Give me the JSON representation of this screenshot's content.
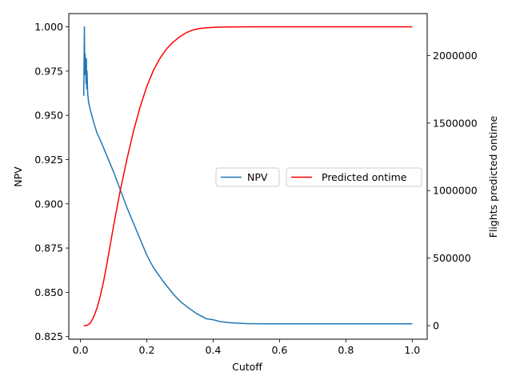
{
  "chart_data": {
    "type": "line",
    "xlabel": "Cutoff",
    "ylabel_left": "NPV",
    "ylabel_right": "Flights predicted ontime",
    "xlim": [
      -0.035,
      1.045
    ],
    "ylim_left": [
      0.8235,
      1.0075
    ],
    "ylim_right": [
      -100000,
      2310000
    ],
    "x_ticks": [
      "0.0",
      "0.2",
      "0.4",
      "0.6",
      "0.8",
      "1.0"
    ],
    "x_tick_values": [
      0.0,
      0.2,
      0.4,
      0.6,
      0.8,
      1.0
    ],
    "y_left_ticks": [
      "0.825",
      "0.850",
      "0.875",
      "0.900",
      "0.925",
      "0.950",
      "0.975",
      "1.000"
    ],
    "y_left_tick_values": [
      0.825,
      0.85,
      0.875,
      0.9,
      0.925,
      0.95,
      0.975,
      1.0
    ],
    "y_right_ticks": [
      "0",
      "500000",
      "1000000",
      "1500000",
      "2000000"
    ],
    "y_right_tick_values": [
      0,
      500000,
      1000000,
      1500000,
      2000000
    ],
    "legend": {
      "placement": "center-right",
      "entries": [
        "NPV",
        "Predicted ontime"
      ]
    },
    "series": [
      {
        "name": "NPV",
        "axis": "left",
        "color": "#1f77b4",
        "x": [
          0.01,
          0.012,
          0.013,
          0.014,
          0.015,
          0.016,
          0.017,
          0.018,
          0.019,
          0.02,
          0.022,
          0.025,
          0.03,
          0.04,
          0.05,
          0.06,
          0.08,
          0.1,
          0.12,
          0.14,
          0.16,
          0.18,
          0.2,
          0.22,
          0.25,
          0.28,
          0.3,
          0.32,
          0.35,
          0.38,
          0.4,
          0.42,
          0.45,
          0.5,
          0.55,
          0.6,
          0.7,
          0.8,
          0.9,
          1.0
        ],
        "y": [
          0.961,
          1.0,
          0.973,
          0.985,
          0.976,
          0.98,
          0.968,
          0.982,
          0.965,
          0.975,
          0.962,
          0.957,
          0.953,
          0.946,
          0.94,
          0.936,
          0.927,
          0.918,
          0.908,
          0.898,
          0.889,
          0.88,
          0.871,
          0.864,
          0.856,
          0.849,
          0.845,
          0.842,
          0.838,
          0.835,
          0.8345,
          0.8335,
          0.8328,
          0.8323,
          0.8322,
          0.8322,
          0.8322,
          0.8322,
          0.8322,
          0.8322
        ]
      },
      {
        "name": "Predicted ontime",
        "axis": "right",
        "color": "#ff0000",
        "x": [
          0.01,
          0.02,
          0.03,
          0.04,
          0.05,
          0.06,
          0.07,
          0.08,
          0.09,
          0.1,
          0.12,
          0.14,
          0.16,
          0.18,
          0.2,
          0.22,
          0.24,
          0.26,
          0.28,
          0.3,
          0.32,
          0.34,
          0.36,
          0.38,
          0.4,
          0.42,
          0.45,
          0.5,
          0.55,
          0.6,
          0.7,
          0.8,
          0.9,
          1.0
        ],
        "y": [
          0,
          2000,
          20000,
          65000,
          130000,
          220000,
          330000,
          460000,
          600000,
          740000,
          1000000,
          1230000,
          1440000,
          1620000,
          1770000,
          1890000,
          1980000,
          2050000,
          2100000,
          2140000,
          2170000,
          2190000,
          2200000,
          2205000,
          2208000,
          2210000,
          2211000,
          2212000,
          2212000,
          2212000,
          2212000,
          2212000,
          2212000,
          2212000
        ]
      }
    ]
  }
}
